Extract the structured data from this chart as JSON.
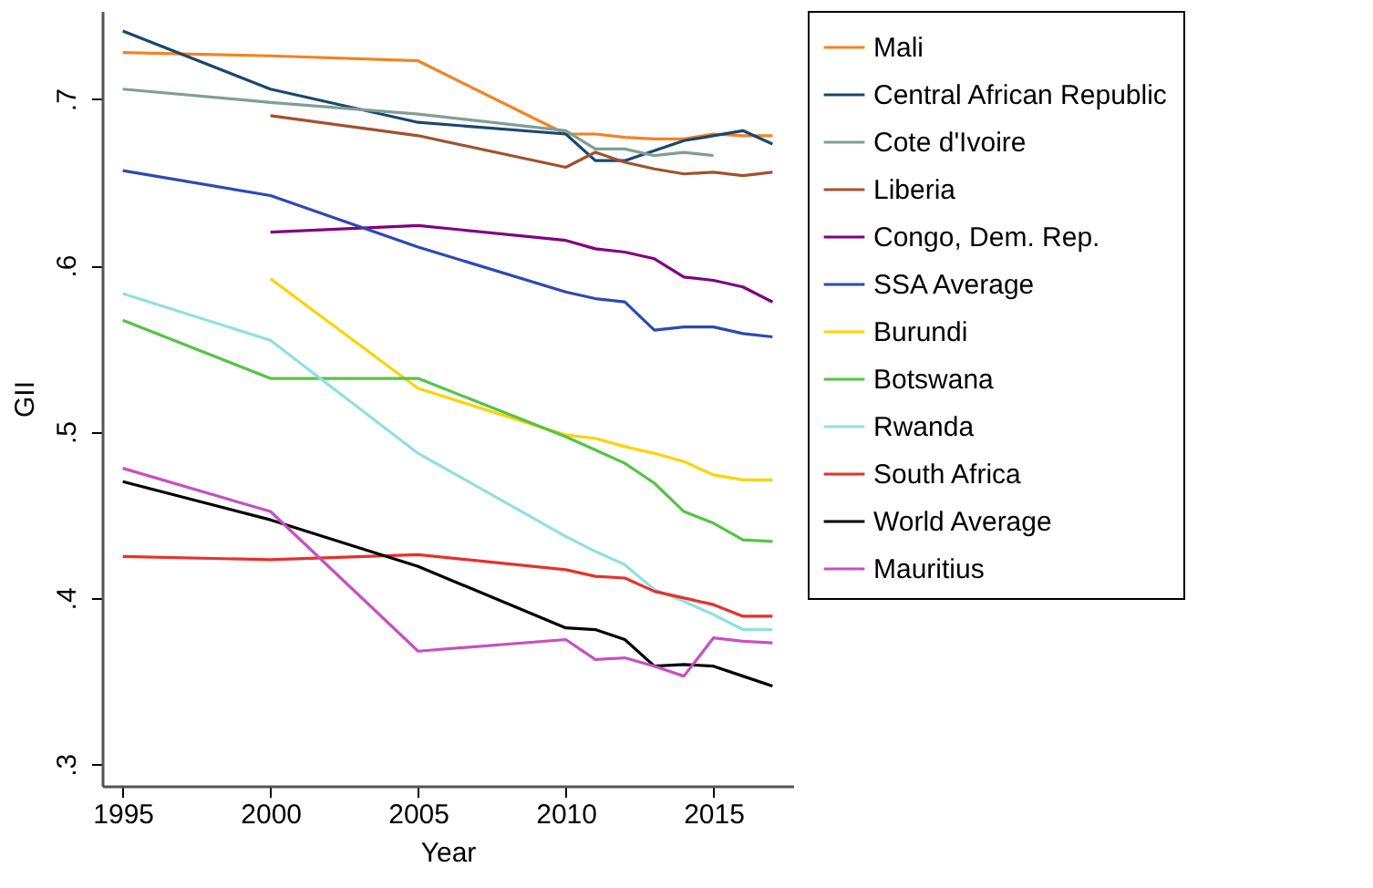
{
  "chart_data": {
    "type": "line",
    "xlabel": "Year",
    "ylabel": "GII",
    "x": [
      1995,
      2000,
      2005,
      2010,
      2011,
      2012,
      2013,
      2014,
      2015,
      2016,
      2017
    ],
    "xlim": [
      1994.3,
      2017.7
    ],
    "xticks": [
      1995,
      2000,
      2005,
      2010,
      2015
    ],
    "ylim": [
      0.287,
      0.753
    ],
    "yticks": [
      {
        "value": 0.3,
        "label": ".3"
      },
      {
        "value": 0.4,
        "label": ".4"
      },
      {
        "value": 0.5,
        "label": ".5"
      },
      {
        "value": 0.6,
        "label": ".6"
      },
      {
        "value": 0.7,
        "label": ".7"
      }
    ],
    "grid": false,
    "legend": "right",
    "marker": "none",
    "line_style": "solid",
    "series": [
      {
        "name": "Mali",
        "color": "#f58220",
        "values": [
          0.728,
          0.726,
          0.723,
          0.679,
          0.679,
          0.677,
          0.676,
          0.676,
          0.679,
          0.678,
          0.678
        ]
      },
      {
        "name": "Central African Republic",
        "color": "#1a476f",
        "values": [
          0.741,
          0.706,
          0.686,
          0.679,
          0.663,
          0.663,
          0.669,
          0.675,
          0.678,
          0.681,
          0.673
        ]
      },
      {
        "name": "Cote d'Ivoire",
        "color": "#7f9f94",
        "values": [
          0.706,
          0.698,
          0.691,
          0.681,
          0.67,
          0.67,
          0.666,
          0.668,
          0.666,
          null,
          null
        ]
      },
      {
        "name": "Liberia",
        "color": "#a0522d",
        "values": [
          null,
          0.69,
          0.678,
          0.659,
          0.668,
          0.662,
          0.658,
          0.655,
          0.656,
          0.654,
          0.656
        ]
      },
      {
        "name": "Congo, Dem. Rep.",
        "color": "#800080",
        "values": [
          null,
          0.62,
          0.624,
          0.615,
          0.61,
          0.608,
          0.604,
          0.593,
          0.591,
          0.587,
          0.578
        ]
      },
      {
        "name": "SSA Average",
        "color": "#2d49b3",
        "values": [
          0.657,
          0.642,
          0.611,
          0.584,
          0.58,
          0.578,
          0.561,
          0.563,
          0.563,
          0.559,
          0.557
        ]
      },
      {
        "name": "Burundi",
        "color": "#ffd200",
        "values": [
          null,
          0.592,
          0.526,
          0.498,
          0.496,
          0.491,
          0.487,
          0.482,
          0.474,
          0.471,
          0.471
        ]
      },
      {
        "name": "Botswana",
        "color": "#55c443",
        "values": [
          0.567,
          0.532,
          0.532,
          0.497,
          0.489,
          0.481,
          0.469,
          0.452,
          0.445,
          0.435,
          0.434
        ]
      },
      {
        "name": "Rwanda",
        "color": "#90e0e0",
        "values": [
          0.583,
          0.555,
          0.487,
          0.437,
          0.428,
          0.42,
          0.405,
          0.398,
          0.39,
          0.381,
          0.381
        ]
      },
      {
        "name": "South Africa",
        "color": "#e8302a",
        "values": [
          0.425,
          0.423,
          0.426,
          0.417,
          0.413,
          0.412,
          0.404,
          0.4,
          0.396,
          0.389,
          0.389
        ]
      },
      {
        "name": "World Average",
        "color": "#000000",
        "values": [
          0.47,
          0.447,
          0.419,
          0.382,
          0.381,
          0.375,
          0.359,
          0.36,
          0.359,
          0.353,
          0.347
        ]
      },
      {
        "name": "Mauritius",
        "color": "#c850c0",
        "values": [
          0.478,
          0.452,
          0.368,
          0.375,
          0.363,
          0.364,
          0.359,
          0.353,
          0.376,
          0.374,
          0.373
        ]
      }
    ]
  }
}
